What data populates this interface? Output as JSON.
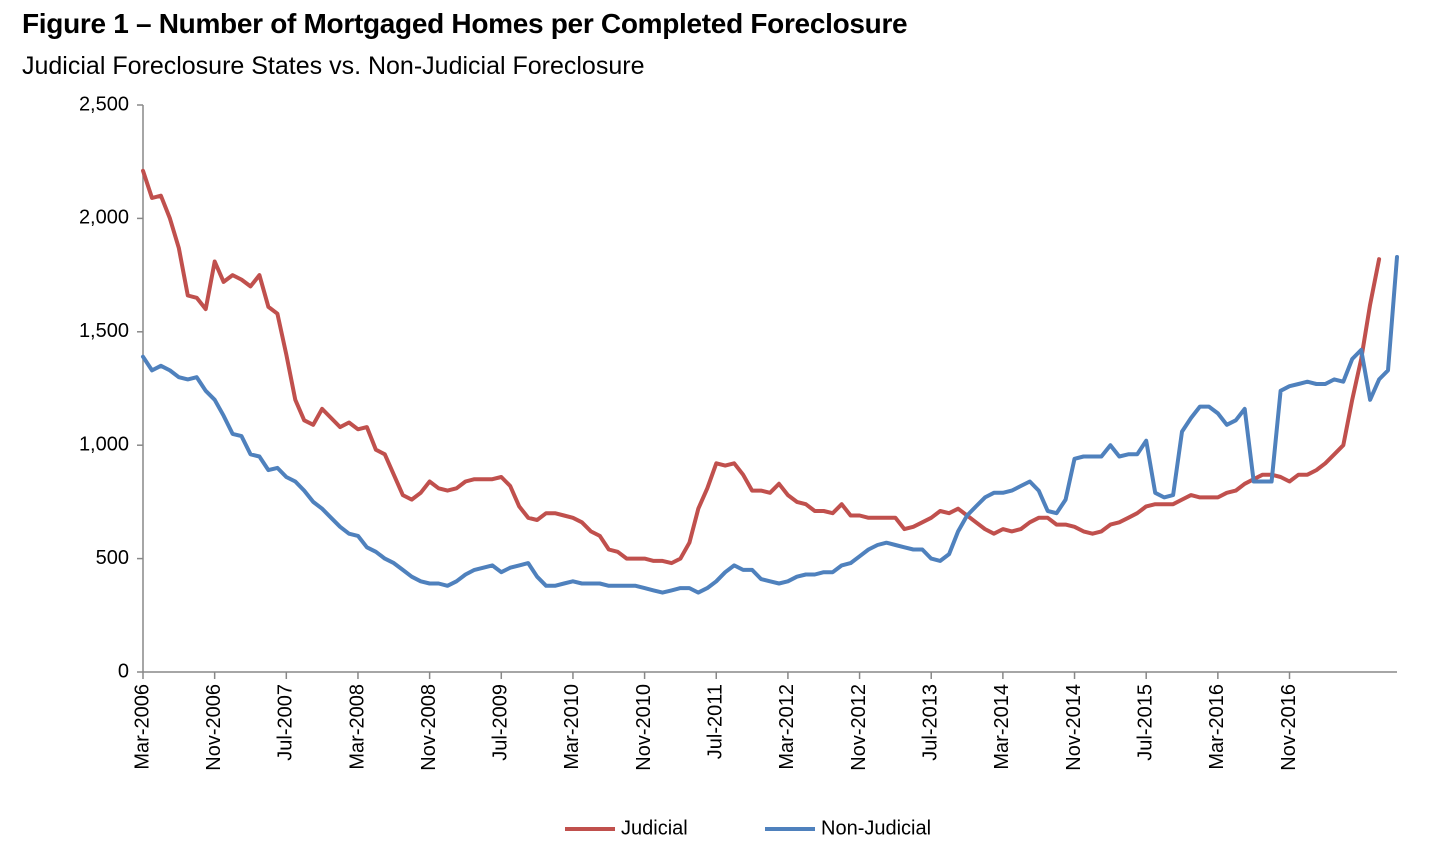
{
  "chart_data": {
    "type": "line",
    "title": "Figure 1 – Number of Mortgaged Homes per Completed Foreclosure",
    "subtitle": "Judicial Foreclosure States vs. Non-Judicial Foreclosure",
    "xlabel": "",
    "ylabel": "",
    "ylim": [
      0,
      2500
    ],
    "yticks": [
      "0",
      "500",
      "1,000",
      "1,500",
      "2,000",
      "2,500"
    ],
    "xticks": [
      "Mar-2006",
      "Nov-2006",
      "Jul-2007",
      "Mar-2008",
      "Nov-2008",
      "Jul-2009",
      "Mar-2010",
      "Nov-2010",
      "Jul-2011",
      "Mar-2012",
      "Nov-2012",
      "Jul-2013",
      "Mar-2014",
      "Nov-2014",
      "Jul-2015",
      "Mar-2016",
      "Nov-2016"
    ],
    "x_start": "Mar-2006",
    "x_end": "Jan-2017",
    "frequency": "monthly",
    "legend_position": "bottom",
    "grid": false,
    "series": [
      {
        "name": "Judicial",
        "color": "#C0504D",
        "values": [
          2210,
          2090,
          2100,
          2000,
          1870,
          1660,
          1650,
          1600,
          1810,
          1720,
          1750,
          1730,
          1700,
          1750,
          1610,
          1580,
          1400,
          1200,
          1110,
          1090,
          1160,
          1120,
          1080,
          1100,
          1070,
          1080,
          980,
          960,
          870,
          780,
          760,
          790,
          840,
          810,
          800,
          810,
          840,
          850,
          850,
          850,
          860,
          820,
          730,
          680,
          670,
          700,
          700,
          690,
          680,
          660,
          620,
          600,
          540,
          530,
          500,
          500,
          500,
          490,
          490,
          480,
          500,
          570,
          720,
          810,
          920,
          910,
          920,
          870,
          800,
          800,
          790,
          830,
          780,
          750,
          740,
          710,
          710,
          700,
          740,
          690,
          690,
          680,
          680,
          680,
          680,
          630,
          640,
          660,
          680,
          710,
          700,
          720,
          690,
          660,
          630,
          610,
          630,
          620,
          630,
          660,
          680,
          680,
          650,
          650,
          640,
          620,
          610,
          620,
          650,
          660,
          680,
          700,
          730,
          740,
          740,
          740,
          760,
          780,
          770,
          770,
          770,
          790,
          800,
          830,
          850,
          870,
          870,
          860,
          840,
          870,
          870,
          890,
          920,
          960,
          1000,
          1200,
          1380,
          1620,
          1820
        ]
      },
      {
        "name": "Non-Judicial",
        "color": "#4F81BD",
        "values": [
          1390,
          1330,
          1350,
          1330,
          1300,
          1290,
          1300,
          1240,
          1200,
          1130,
          1050,
          1040,
          960,
          950,
          890,
          900,
          860,
          840,
          800,
          750,
          720,
          680,
          640,
          610,
          600,
          550,
          530,
          500,
          480,
          450,
          420,
          400,
          390,
          390,
          380,
          400,
          430,
          450,
          460,
          470,
          440,
          460,
          470,
          480,
          420,
          380,
          380,
          390,
          400,
          390,
          390,
          390,
          380,
          380,
          380,
          380,
          370,
          360,
          350,
          360,
          370,
          370,
          350,
          370,
          400,
          440,
          470,
          450,
          450,
          410,
          400,
          390,
          400,
          420,
          430,
          430,
          440,
          440,
          470,
          480,
          510,
          540,
          560,
          570,
          560,
          550,
          540,
          540,
          500,
          490,
          520,
          620,
          690,
          730,
          770,
          790,
          790,
          800,
          820,
          840,
          800,
          710,
          700,
          760,
          940,
          950,
          950,
          950,
          1000,
          950,
          960,
          960,
          1020,
          790,
          770,
          780,
          1060,
          1120,
          1170,
          1170,
          1140,
          1090,
          1110,
          1160,
          840,
          840,
          840,
          1240,
          1260,
          1270,
          1280,
          1270,
          1270,
          1290,
          1280,
          1380,
          1420,
          1200,
          1290,
          1330,
          1830
        ]
      }
    ]
  }
}
